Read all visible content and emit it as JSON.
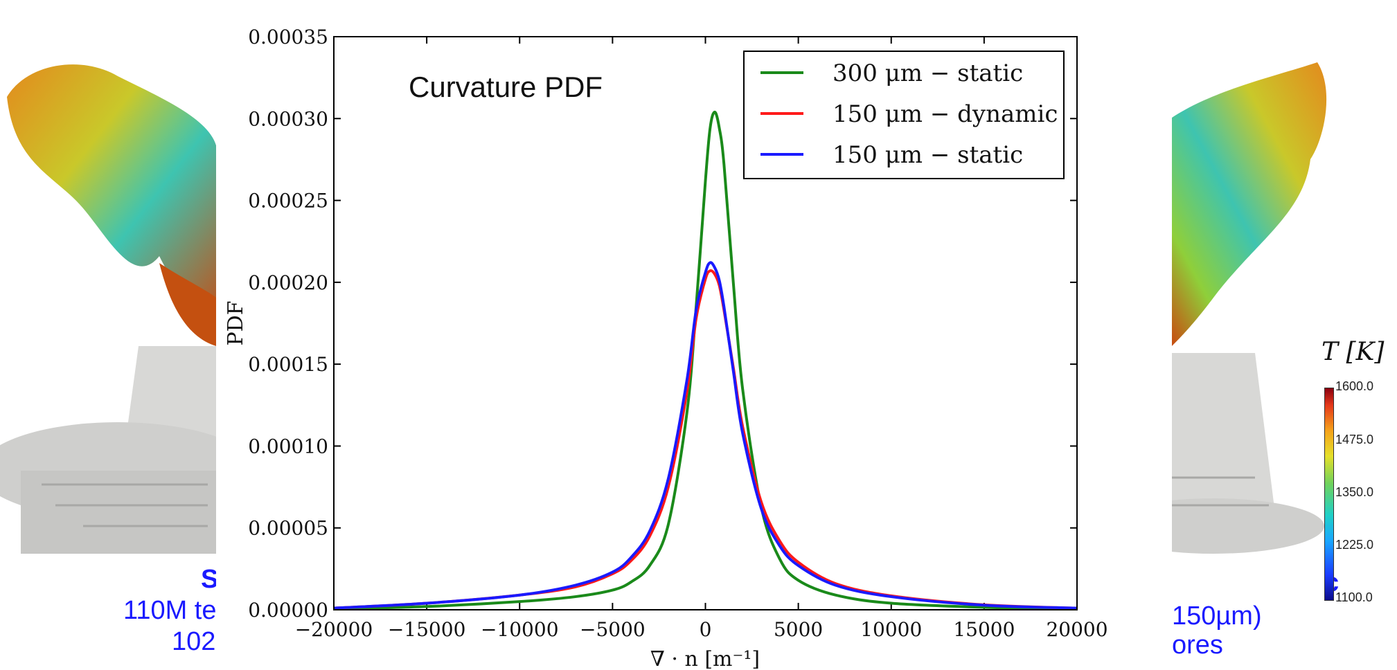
{
  "background": {
    "left_caption_line1": "S",
    "left_caption_line2": "110M te",
    "left_caption_line3": "102",
    "right_caption_line1": "c",
    "right_caption_line2": "150µm)",
    "right_caption_line3": "ores",
    "colorbar": {
      "title": "T [K]",
      "ticks": [
        "1600.0",
        "1475.0",
        "1350.0",
        "1225.0",
        "1100.0"
      ]
    }
  },
  "chart_data": {
    "type": "line",
    "title": "Curvature PDF",
    "xlabel": "∇ · n [m⁻¹]",
    "ylabel": "PDF",
    "xlim": [
      -20000,
      20000
    ],
    "ylim": [
      0,
      0.00035
    ],
    "x_ticks": [
      "−20000",
      "−15000",
      "−10000",
      "−5000",
      "0",
      "5000",
      "10000",
      "15000",
      "20000"
    ],
    "y_ticks": [
      "0.00000",
      "0.00005",
      "0.00010",
      "0.00015",
      "0.00020",
      "0.00025",
      "0.00030",
      "0.00035"
    ],
    "legend_position": "top-right",
    "grid": false,
    "series": [
      {
        "name": "300 μm − static",
        "color": "#1a8a1a",
        "x": [
          -20000,
          -15000,
          -10000,
          -7000,
          -5000,
          -4000,
          -3000,
          -2000,
          -1000,
          -500,
          0,
          250,
          500,
          750,
          1000,
          1500,
          2000,
          3000,
          4000,
          5000,
          7000,
          10000,
          15000,
          20000
        ],
        "y": [
          5e-07,
          2e-06,
          5e-06,
          8e-06,
          1.2e-05,
          1.7e-05,
          2.7e-05,
          5.2e-05,
          0.00012,
          0.000185,
          0.000262,
          0.000294,
          0.000304,
          0.000294,
          0.000272,
          0.0002,
          0.000135,
          6.3e-05,
          3.1e-05,
          1.8e-05,
          9e-06,
          4e-06,
          1.5e-06,
          5e-07
        ]
      },
      {
        "name": "150 μm − dynamic",
        "color": "#ff1a1a",
        "x": [
          -20000,
          -15000,
          -10000,
          -7000,
          -5000,
          -4000,
          -3000,
          -2000,
          -1000,
          -500,
          0,
          250,
          500,
          750,
          1000,
          1500,
          2000,
          3000,
          4000,
          5000,
          7000,
          10000,
          15000,
          20000
        ],
        "y": [
          1e-06,
          4e-06,
          9e-06,
          1.4e-05,
          2.2e-05,
          3e-05,
          4.5e-05,
          7.5e-05,
          0.000133,
          0.000178,
          0.000202,
          0.000207,
          0.000205,
          0.000198,
          0.000183,
          0.000148,
          0.000112,
          6.6e-05,
          4.2e-05,
          2.9e-05,
          1.6e-05,
          8.5e-06,
          3e-06,
          1e-06
        ]
      },
      {
        "name": "150 μm − static",
        "color": "#1a1aff",
        "x": [
          -20000,
          -15000,
          -10000,
          -7000,
          -5000,
          -4000,
          -3000,
          -2000,
          -1000,
          -500,
          0,
          250,
          500,
          750,
          1000,
          1500,
          2000,
          3000,
          4000,
          5000,
          7000,
          10000,
          15000,
          20000
        ],
        "y": [
          1e-06,
          4e-06,
          9e-06,
          1.5e-05,
          2.3e-05,
          3.2e-05,
          4.8e-05,
          8e-05,
          0.00014,
          0.000183,
          0.000206,
          0.000212,
          0.000209,
          0.000201,
          0.000185,
          0.000146,
          0.000108,
          6.2e-05,
          3.9e-05,
          2.7e-05,
          1.5e-05,
          8e-06,
          2.8e-06,
          1e-06
        ]
      }
    ]
  }
}
